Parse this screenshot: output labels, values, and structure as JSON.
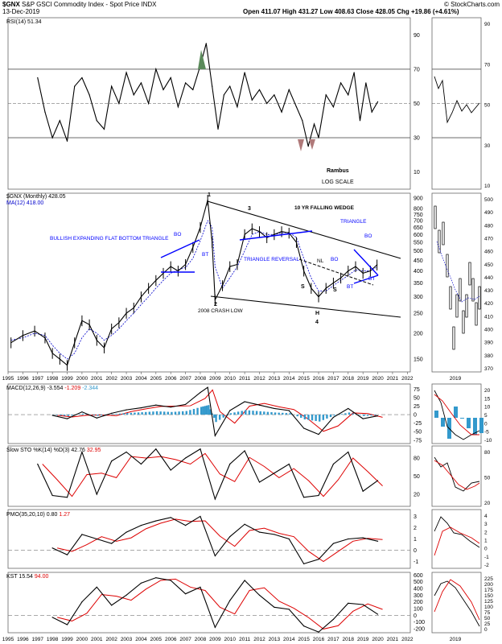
{
  "header": {
    "symbol": "$GNX",
    "name": "S&P GSCI Commodity Index - Spot Price",
    "exchange": "INDX",
    "date": "13-Dec-2019",
    "ohlc": "Open 411.07  High 431.27  Low 408.63  Close 428.05  Chg +19.86 (+4.61%)",
    "watermark": "© StockCharts.com"
  },
  "chart_data": [
    {
      "type": "line",
      "name": "RSI panel",
      "legend": "RSI(14) 51.34",
      "yticks": [
        10,
        30,
        50,
        70,
        90
      ],
      "ylim": [
        0,
        100
      ],
      "reference_lines": [
        30,
        50,
        70
      ],
      "annotations": [
        "Rambus",
        "LOG SCALE"
      ],
      "x": [
        1997.0,
        1997.5,
        1998.0,
        1998.5,
        1999.0,
        1999.5,
        2000.0,
        2000.5,
        2001.0,
        2001.5,
        2002.0,
        2002.5,
        2003.0,
        2003.5,
        2004.0,
        2004.5,
        2005.0,
        2005.5,
        2006.0,
        2006.5,
        2007.0,
        2007.5,
        2008.0,
        2008.4,
        2008.8,
        2009.2,
        2009.6,
        2010.0,
        2010.5,
        2011.0,
        2011.5,
        2012.0,
        2012.5,
        2013.0,
        2013.5,
        2014.0,
        2014.5,
        2014.9,
        2015.3,
        2015.7,
        2016.0,
        2016.5,
        2017.0,
        2017.5,
        2018.0,
        2018.4,
        2018.8,
        2019.2,
        2019.6,
        2020.0
      ],
      "values": [
        65,
        45,
        30,
        40,
        28,
        60,
        65,
        55,
        40,
        35,
        60,
        50,
        68,
        55,
        62,
        50,
        70,
        58,
        65,
        48,
        62,
        58,
        72,
        85,
        60,
        35,
        55,
        60,
        48,
        68,
        52,
        58,
        50,
        55,
        45,
        58,
        48,
        40,
        25,
        38,
        30,
        55,
        48,
        62,
        55,
        68,
        40,
        62,
        45,
        51
      ]
    },
    {
      "type": "line",
      "name": "Price panel",
      "legend": [
        "$GNX (Monthly) 428.05",
        "MA(12) 418.00"
      ],
      "log_scale": true,
      "yticks": [
        150,
        200,
        250,
        300,
        350,
        400,
        450,
        500,
        550,
        600,
        650,
        700,
        750,
        800,
        900
      ],
      "ylim": [
        130,
        950
      ],
      "xticks": [
        "1995",
        "1996",
        "1997",
        "1998",
        "1999",
        "2000",
        "2001",
        "2002",
        "2003",
        "2004",
        "2005",
        "2006",
        "2007",
        "2008",
        "2009",
        "2010",
        "2011",
        "2012",
        "2013",
        "2014",
        "2015",
        "2016",
        "2017",
        "2018",
        "2019",
        "2020",
        "2021",
        "2022"
      ],
      "x": [
        1995.2,
        1996.0,
        1996.8,
        1997.5,
        1998.0,
        1998.5,
        1999.0,
        1999.5,
        2000.0,
        2000.5,
        2001.0,
        2001.5,
        2002.0,
        2002.5,
        2003.0,
        2003.5,
        2004.0,
        2004.5,
        2005.0,
        2005.5,
        2006.0,
        2006.5,
        2007.0,
        2007.5,
        2008.0,
        2008.5,
        2008.8,
        2009.0,
        2009.5,
        2010.0,
        2010.5,
        2011.0,
        2011.5,
        2012.0,
        2012.5,
        2013.0,
        2013.5,
        2014.0,
        2014.5,
        2015.0,
        2015.5,
        2016.0,
        2016.5,
        2017.0,
        2017.5,
        2018.0,
        2018.5,
        2019.0,
        2019.5,
        2019.95
      ],
      "values": [
        180,
        195,
        205,
        190,
        160,
        150,
        140,
        180,
        230,
        220,
        185,
        170,
        210,
        225,
        250,
        265,
        300,
        330,
        360,
        390,
        420,
        400,
        430,
        520,
        650,
        880,
        550,
        290,
        340,
        420,
        430,
        600,
        640,
        620,
        580,
        600,
        620,
        610,
        550,
        400,
        330,
        300,
        330,
        350,
        370,
        400,
        420,
        390,
        400,
        428
      ],
      "ma_values": [
        185,
        190,
        200,
        195,
        175,
        160,
        150,
        160,
        190,
        210,
        200,
        185,
        195,
        210,
        230,
        250,
        275,
        300,
        330,
        360,
        390,
        405,
        415,
        460,
        560,
        700,
        650,
        420,
        330,
        370,
        420,
        500,
        600,
        620,
        600,
        600,
        610,
        615,
        580,
        460,
        370,
        320,
        320,
        340,
        360,
        380,
        405,
        400,
        400,
        418
      ],
      "annotations": [
        "1",
        "2",
        "3",
        "4",
        "H",
        "S",
        "S",
        "NL",
        "BO",
        "BO",
        "BO",
        "BT",
        "BT",
        "BT",
        "2008 CRASH LOW",
        "10 YR FALLING WEDGE",
        "TRIANGLE",
        "TRIANGLE REVERSAL",
        "BULLISH EXPANDING FLAT BOTTOM TRIANGLE"
      ]
    },
    {
      "type": "line",
      "name": "MACD panel",
      "legend": [
        "MACD(12,26,9) -3.554",
        "-1.209",
        "-2.344"
      ],
      "yticks": [
        -75,
        -50,
        -25,
        0,
        25,
        50,
        75
      ],
      "ylim": [
        -85,
        90
      ],
      "x": [
        1998,
        1999,
        2000,
        2001,
        2002,
        2003,
        2004,
        2005,
        2006,
        2007,
        2008,
        2008.5,
        2009,
        2010,
        2011,
        2012,
        2013,
        2014,
        2015,
        2016,
        2017,
        2018,
        2019,
        2020
      ],
      "values": [
        -2,
        -12,
        8,
        -10,
        4,
        14,
        20,
        28,
        22,
        30,
        65,
        80,
        -62,
        12,
        38,
        28,
        18,
        12,
        -40,
        -58,
        -8,
        18,
        -12,
        -3.554
      ]
    },
    {
      "type": "line",
      "name": "Slow STO panel",
      "legend": [
        "Slow STO %K(14) %D(3) 42.76",
        "32.95"
      ],
      "yticks": [
        20,
        50,
        80
      ],
      "ylim": [
        0,
        100
      ],
      "x": [
        1997,
        1998,
        1999,
        2000,
        2001,
        2002,
        2003,
        2004,
        2005,
        2006,
        2007,
        2008,
        2009,
        2010,
        2011,
        2012,
        2013,
        2014,
        2015,
        2016,
        2017,
        2018,
        2019,
        2020
      ],
      "values": [
        70,
        18,
        15,
        90,
        20,
        75,
        90,
        70,
        95,
        60,
        80,
        95,
        12,
        70,
        92,
        40,
        55,
        70,
        15,
        18,
        70,
        90,
        25,
        42.76
      ]
    },
    {
      "type": "line",
      "name": "PMO panel",
      "legend": [
        "PMO(35,20,10) 0.80",
        "1.27"
      ],
      "yticks": [
        -1,
        0,
        1,
        2,
        3
      ],
      "ylim": [
        -1.6,
        3.6
      ],
      "x": [
        1998,
        1999,
        2000,
        2001,
        2002,
        2003,
        2004,
        2005,
        2006,
        2007,
        2008,
        2009,
        2010,
        2011,
        2012,
        2013,
        2014,
        2015,
        2016,
        2017,
        2018,
        2019,
        2020
      ],
      "values": [
        0.2,
        -0.4,
        1.4,
        1.0,
        0.6,
        1.6,
        2.2,
        2.6,
        2.9,
        2.2,
        3.0,
        -0.5,
        1.2,
        2.3,
        1.6,
        1.4,
        1.0,
        -1.2,
        -0.8,
        0.6,
        1.0,
        1.1,
        0.8
      ]
    },
    {
      "type": "line",
      "name": "KST panel",
      "legend": [
        "KST 15.54",
        "94.00"
      ],
      "yticks": [
        -200,
        -100,
        0,
        100,
        200,
        300,
        400,
        500,
        600
      ],
      "ylim": [
        -260,
        640
      ],
      "x": [
        1998,
        1999,
        2000,
        2001,
        2002,
        2003,
        2004,
        2005,
        2006,
        2007,
        2008,
        2009,
        2010,
        2011,
        2012,
        2013,
        2014,
        2015,
        2016,
        2017,
        2018,
        2019,
        2020
      ],
      "values": [
        -30,
        -140,
        200,
        420,
        150,
        300,
        480,
        560,
        520,
        320,
        420,
        -180,
        220,
        520,
        300,
        120,
        90,
        -160,
        -250,
        -60,
        180,
        160,
        15.54
      ]
    }
  ],
  "inset": {
    "year_label": "2019",
    "rsi_ticks": [
      "90",
      "70",
      "50",
      "30",
      "10"
    ],
    "price_ticks": [
      "500",
      "490",
      "480",
      "470",
      "460",
      "450",
      "440",
      "430",
      "420",
      "410",
      "400",
      "390",
      "380",
      "370"
    ],
    "macd_ticks": [
      "20",
      "15",
      "10",
      "5",
      "0",
      "-5",
      "-10"
    ],
    "sto_ticks": [
      "80",
      "50",
      "20"
    ],
    "pmo_ticks": [
      "4",
      "3",
      "2",
      "1",
      "0",
      "-1",
      "-2"
    ],
    "kst_ticks": [
      "225",
      "200",
      "175",
      "150",
      "125",
      "100",
      "75",
      "50",
      "25",
      "0"
    ]
  },
  "xaxis_labels": [
    "1995",
    "1996",
    "1997",
    "1998",
    "1999",
    "2000",
    "2001",
    "2002",
    "2003",
    "2004",
    "2005",
    "2006",
    "2007",
    "2008",
    "2009",
    "2010",
    "2011",
    "2012",
    "2013",
    "2014",
    "2015",
    "2016",
    "2017",
    "2018",
    "2019",
    "2020",
    "2021",
    "2022"
  ],
  "colors": {
    "price": "#000000",
    "ma": "#0000cc",
    "signal": "#dd0000",
    "histogram": "#3399cc",
    "trendline": "#0000ff",
    "grid": "#888888"
  }
}
